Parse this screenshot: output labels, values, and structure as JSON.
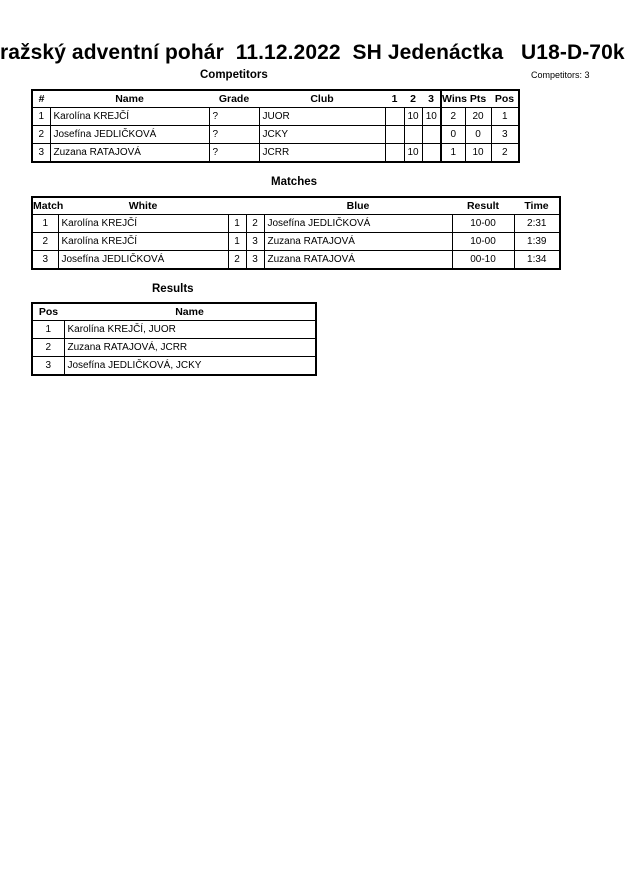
{
  "title": "ražský adventní pohár  11.12.2022  SH Jedenáctka   U18-D-70k",
  "competitors": {
    "heading": "Competitors",
    "count_label": "Competitors: 3",
    "headers": [
      "#",
      "Name",
      "Grade",
      "Club",
      "1",
      "2",
      "3",
      "Wins",
      "Pts",
      "Pos"
    ],
    "rows": [
      [
        "1",
        "Karolína KREJČÍ",
        "?",
        "JUOR",
        "",
        "10",
        "10",
        "2",
        "20",
        "1"
      ],
      [
        "2",
        "Josefína JEDLIČKOVÁ",
        "?",
        "JCKY",
        "",
        "",
        "",
        "0",
        "0",
        "3"
      ],
      [
        "3",
        "Zuzana RATAJOVÁ",
        "?",
        "JCRR",
        "",
        "10",
        "",
        "1",
        "10",
        "2"
      ]
    ]
  },
  "matches": {
    "heading": "Matches",
    "headers": [
      "Match",
      "White",
      "Blue",
      "Result",
      "Time"
    ],
    "rows": [
      [
        "1",
        "Karolína KREJČÍ",
        "1",
        "2",
        "Josefína JEDLIČKOVÁ",
        "10-00",
        "2:31"
      ],
      [
        "2",
        "Karolína KREJČÍ",
        "1",
        "3",
        "Zuzana RATAJOVÁ",
        "10-00",
        "1:39"
      ],
      [
        "3",
        "Josefína JEDLIČKOVÁ",
        "2",
        "3",
        "Zuzana RATAJOVÁ",
        "00-10",
        "1:34"
      ]
    ]
  },
  "results": {
    "heading": "Results",
    "headers": [
      "Pos",
      "Name"
    ],
    "rows": [
      [
        "1",
        "Karolína KREJČÍ, JUOR"
      ],
      [
        "2",
        "Zuzana RATAJOVÁ, JCRR"
      ],
      [
        "3",
        "Josefína JEDLIČKOVÁ, JCKY"
      ]
    ]
  }
}
